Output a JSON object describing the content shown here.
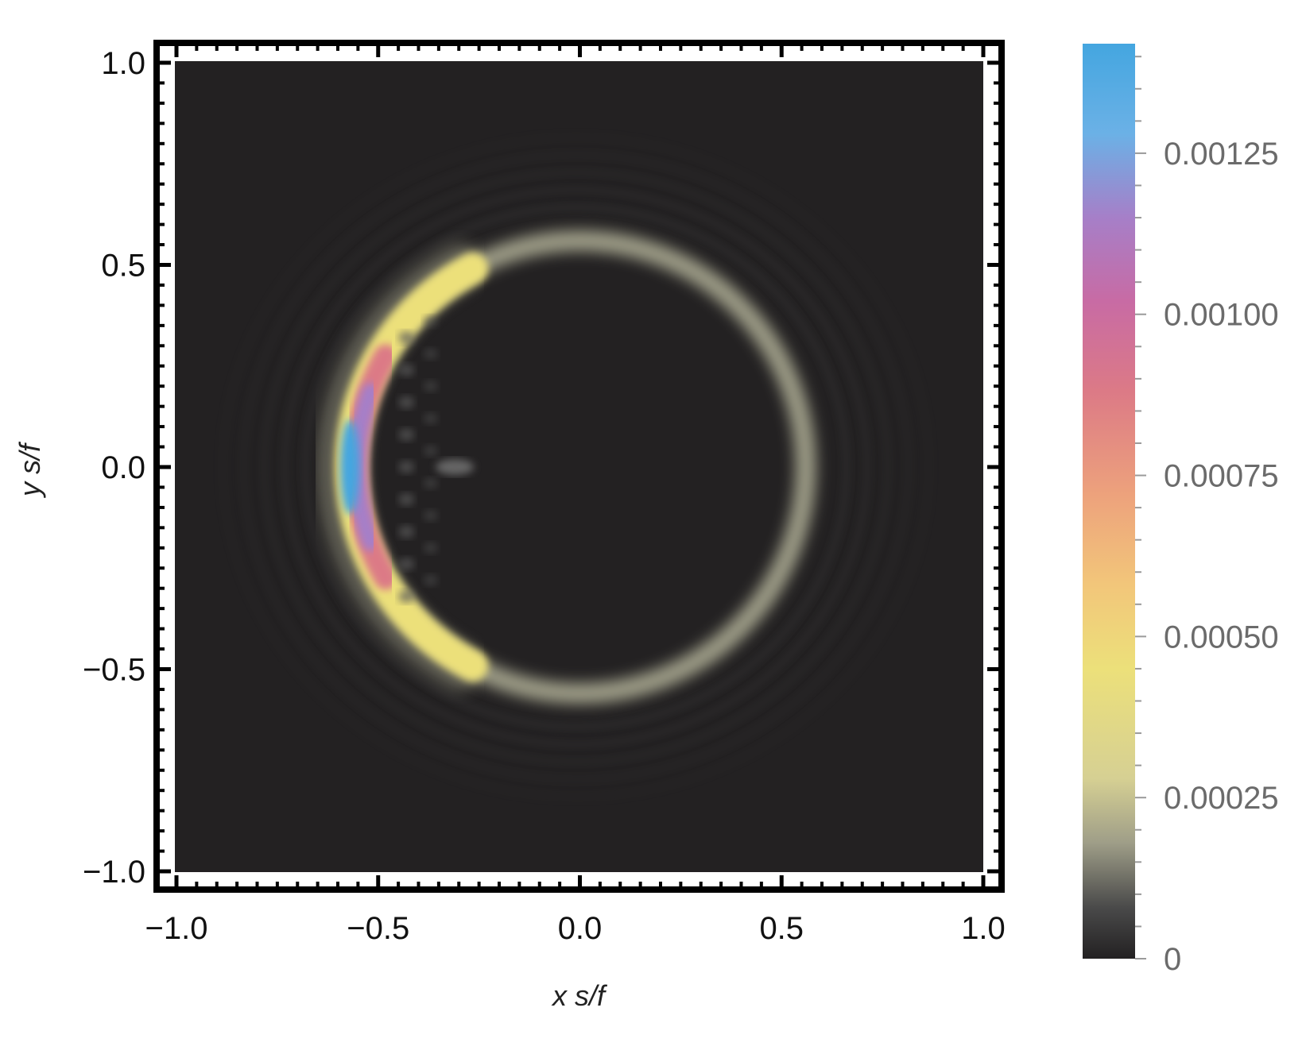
{
  "chart_data": {
    "type": "heatmap",
    "xlabel": "x s/f",
    "ylabel": "y s/f",
    "xlim": [
      -1.0,
      1.0
    ],
    "ylim": [
      -1.0,
      1.0
    ],
    "x_ticks": [
      "−1.0",
      "−0.5",
      "0.0",
      "0.5",
      "1.0"
    ],
    "y_ticks": [
      "1.0",
      "0.5",
      "0.0",
      "−0.5",
      "−1.0"
    ],
    "x_tick_values": [
      -1.0,
      -0.5,
      0.0,
      0.5,
      1.0
    ],
    "y_tick_values": [
      1.0,
      0.5,
      0.0,
      -0.5,
      -1.0
    ],
    "background_color": "#232122",
    "grid": false,
    "features": {
      "ring_center": [
        0.0,
        0.0
      ],
      "ring_radius_x": 0.56,
      "ring_radius_y": 0.56,
      "ring_intensity": 0.00012,
      "crescent_peak_position": [
        -0.57,
        0.0
      ],
      "crescent_peak_value": 0.00138,
      "crescent_yellow_value": 0.00045
    },
    "colorbar": {
      "min": 0,
      "max": 0.00142,
      "tick_labels": [
        "0",
        "0.00025",
        "0.00050",
        "0.00075",
        "0.00100",
        "0.00125"
      ],
      "tick_values": [
        0,
        0.00025,
        0.0005,
        0.00075,
        0.001,
        0.00125
      ],
      "stops": [
        {
          "value": 0.0,
          "color": "#232122"
        },
        {
          "value": 8e-05,
          "color": "#4a4a4a"
        },
        {
          "value": 0.00018,
          "color": "#9f9e88"
        },
        {
          "value": 0.00028,
          "color": "#d6d093"
        },
        {
          "value": 0.00045,
          "color": "#ece07a"
        },
        {
          "value": 0.00058,
          "color": "#f2c67a"
        },
        {
          "value": 0.00072,
          "color": "#eda27c"
        },
        {
          "value": 0.00088,
          "color": "#dc7a86"
        },
        {
          "value": 0.00102,
          "color": "#c86ba4"
        },
        {
          "value": 0.00115,
          "color": "#a67fc8"
        },
        {
          "value": 0.00128,
          "color": "#6bb1e6"
        },
        {
          "value": 0.00142,
          "color": "#44a6e0"
        }
      ]
    }
  }
}
